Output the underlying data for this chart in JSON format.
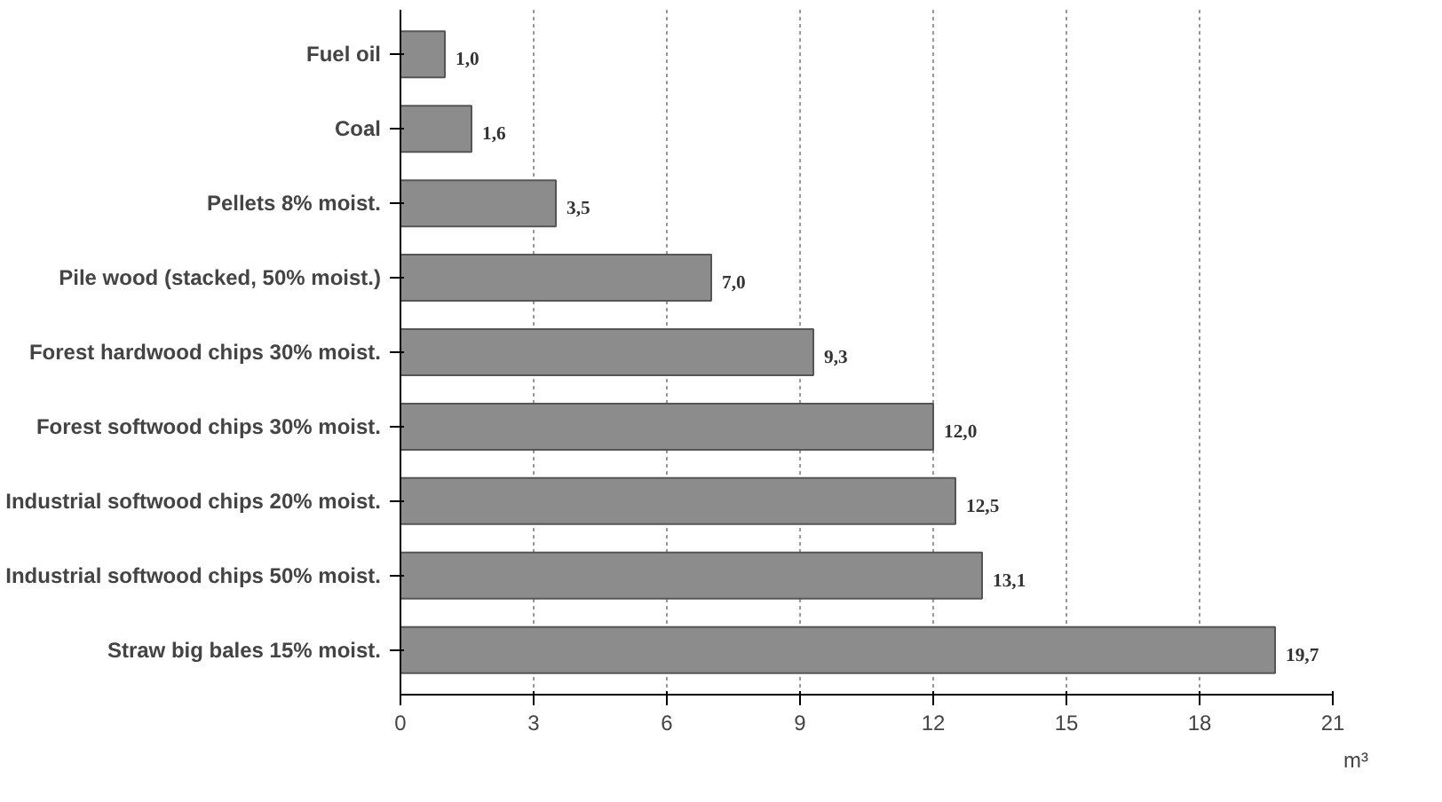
{
  "chart_data": {
    "type": "bar",
    "orientation": "horizontal",
    "xlabel": "m³",
    "categories": [
      "Fuel oil",
      "Coal",
      "Pellets 8% moist.",
      "Pile wood (stacked, 50% moist.)",
      "Forest hardwood chips 30% moist.",
      "Forest softwood chips 30% moist.",
      "Industrial softwood chips 20% moist.",
      "Industrial softwood chips 50% moist.",
      "Straw big bales 15% moist."
    ],
    "values": [
      1.0,
      1.6,
      3.5,
      7.0,
      9.3,
      12.0,
      12.5,
      13.1,
      19.7
    ],
    "value_labels": [
      "1,0",
      "1,6",
      "3,5",
      "7,0",
      "9,3",
      "12,0",
      "12,5",
      "13,1",
      "19,7"
    ],
    "color": "#8c8c8c",
    "xlim": [
      0,
      21
    ],
    "xticks": [
      0,
      3,
      6,
      9,
      12,
      15,
      18,
      21
    ],
    "grid": "x"
  }
}
